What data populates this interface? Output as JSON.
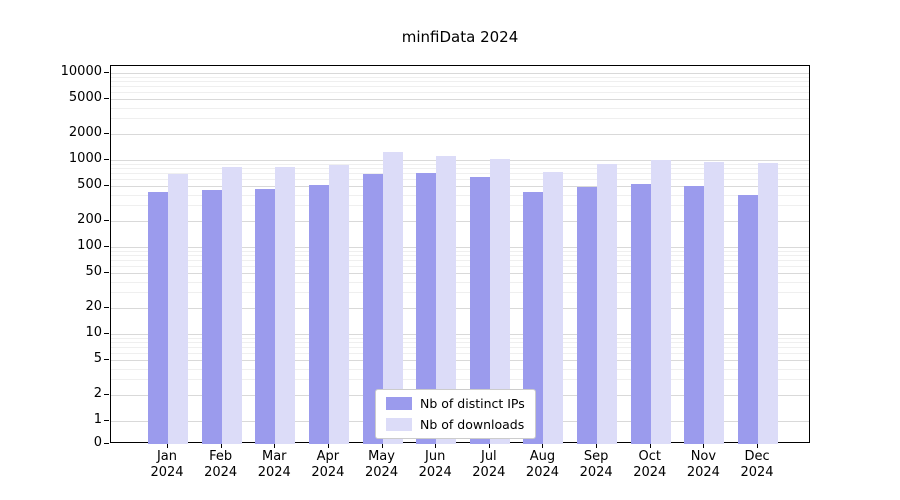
{
  "title": "minfiData 2024",
  "chart_data": {
    "type": "bar",
    "title": "minfiData 2024",
    "scale": "symlog",
    "grid": true,
    "legend_position": "lower center",
    "year": "2024",
    "categories": [
      "Jan",
      "Feb",
      "Mar",
      "Apr",
      "May",
      "Jun",
      "Jul",
      "Aug",
      "Sep",
      "Oct",
      "Nov",
      "Dec"
    ],
    "series": [
      {
        "name": "Nb of distinct IPs",
        "color": "#9b9bed",
        "values": [
          430,
          450,
          470,
          510,
          690,
          700,
          640,
          430,
          495,
          535,
          500,
          395
        ]
      },
      {
        "name": "Nb of downloads",
        "color": "#dcdcf8",
        "values": [
          690,
          820,
          840,
          870,
          1250,
          1100,
          1030,
          720,
          905,
          1000,
          950,
          930
        ]
      }
    ],
    "yticks": [
      0,
      1,
      2,
      5,
      10,
      20,
      50,
      100,
      200,
      500,
      1000,
      2000,
      5000,
      10000
    ],
    "ylim": [
      0,
      12000
    ]
  }
}
